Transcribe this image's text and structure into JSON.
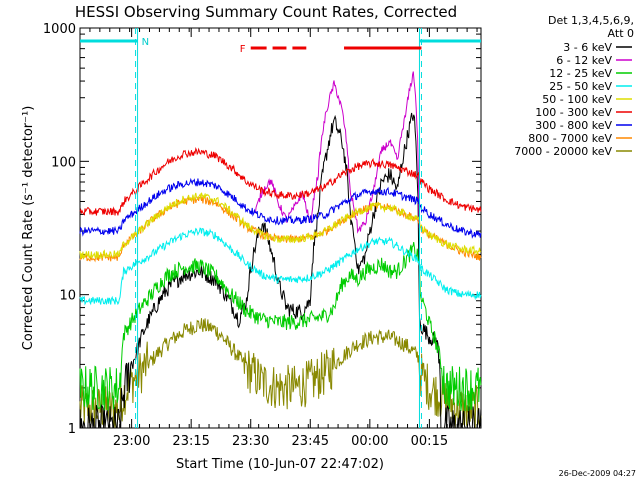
{
  "chart_data": {
    "type": "line",
    "title": "HESSI Observing Summary Count Rates, Corrected",
    "ylabel": "Corrected Count Rate (s⁻¹ detector⁻¹)",
    "xlabel": "Start Time (10-Jun-07 22:47:02)",
    "y_scale": "log",
    "ylim": [
      1,
      1000
    ],
    "xlim_minutes": [
      0,
      101
    ],
    "ytick_labels": [
      "1",
      "10",
      "100",
      "1000"
    ],
    "ytick_values": [
      1,
      10,
      100,
      1000
    ],
    "xtick_labels": [
      "23:00",
      "23:15",
      "23:30",
      "23:45",
      "00:00",
      "00:15"
    ],
    "xtick_minutes": [
      13,
      28,
      43,
      58,
      73,
      88
    ],
    "legend_header": [
      "Det 1,3,4,5,6,9,",
      "Att 0"
    ],
    "legend_position": "right, outside plot",
    "footer_date": "26-Dec-2009 04:27",
    "night_label": "N",
    "night_intervals_minutes": [
      [
        0,
        14.5
      ],
      [
        85.5,
        101
      ]
    ],
    "flare_label": "F",
    "flare_segments_minutes": [
      [
        43,
        47
      ],
      [
        48.5,
        52
      ],
      [
        53.5,
        57
      ],
      [
        66.5,
        86
      ]
    ],
    "attenuator_lines_minutes": [
      14.5,
      85.5
    ],
    "series": [
      {
        "name": "3 - 6 keV",
        "color": "#000000",
        "x": [
          0,
          10,
          11,
          14,
          18,
          22,
          26,
          30,
          34,
          38,
          40,
          42,
          44,
          46,
          48,
          50,
          52,
          54,
          56,
          58,
          60,
          62,
          64,
          66,
          68,
          70,
          72,
          74,
          76,
          78,
          80,
          82,
          84,
          85.4,
          85.6,
          88,
          90,
          91,
          92,
          101
        ],
        "y": [
          1,
          1,
          1.8,
          3.5,
          7,
          11,
          14,
          15,
          13,
          8.5,
          6.5,
          9,
          22,
          35,
          22,
          12,
          8,
          7.5,
          7.5,
          9,
          40,
          110,
          200,
          140,
          40,
          15,
          20,
          40,
          70,
          80,
          60,
          130,
          230,
          7,
          6,
          4.8,
          4.5,
          1,
          1,
          1
        ]
      },
      {
        "name": "6 - 12 keV",
        "color": "#cc00cc",
        "x": [
          44,
          46,
          48,
          50,
          52,
          54,
          56,
          58,
          60,
          62,
          64,
          66,
          68,
          70,
          72,
          74,
          76,
          78,
          80,
          82,
          84,
          85.4
        ],
        "y": [
          40,
          60,
          72,
          48,
          36,
          45,
          58,
          32,
          80,
          230,
          380,
          240,
          60,
          30,
          35,
          60,
          120,
          140,
          100,
          220,
          460,
          30
        ]
      },
      {
        "name": "12 - 25 keV",
        "color": "#00cc00",
        "x": [
          0,
          10,
          11,
          14,
          18,
          22,
          26,
          30,
          34,
          38,
          42,
          46,
          50,
          54,
          58,
          62,
          64,
          66,
          68,
          70,
          72,
          74,
          76,
          78,
          80,
          82,
          84,
          85.4,
          85.6,
          88,
          91,
          92,
          101
        ],
        "y": [
          2,
          2,
          5,
          7,
          10,
          14,
          16,
          16.5,
          14,
          10,
          7.5,
          6.5,
          6.2,
          6.2,
          6.5,
          7,
          8,
          12,
          14,
          13,
          15,
          16,
          17,
          15,
          15,
          18,
          22,
          19,
          10,
          6,
          3,
          2,
          2
        ]
      },
      {
        "name": "25 - 50 keV",
        "color": "#00eeee",
        "x": [
          0,
          10,
          11,
          14,
          18,
          22,
          26,
          30,
          34,
          38,
          42,
          46,
          50,
          54,
          58,
          62,
          66,
          70,
          74,
          78,
          82,
          85.4,
          85.6,
          88,
          92,
          96,
          101
        ],
        "y": [
          9,
          9,
          15,
          17,
          20,
          24,
          28,
          30,
          28,
          22,
          17,
          14,
          13,
          13,
          13.5,
          15,
          18,
          22,
          25,
          25,
          21,
          18,
          16,
          14,
          11,
          10,
          10
        ]
      },
      {
        "name": "50 - 100 keV",
        "color": "#dddd00",
        "x": [
          0,
          10,
          11,
          14,
          18,
          22,
          26,
          30,
          34,
          38,
          42,
          46,
          50,
          54,
          58,
          62,
          66,
          70,
          74,
          78,
          82,
          85.4,
          85.6,
          88,
          92,
          96,
          101
        ],
        "y": [
          20,
          20,
          24,
          28,
          36,
          45,
          52,
          55,
          52,
          42,
          33,
          28,
          26,
          26,
          27,
          30,
          36,
          42,
          46,
          45,
          40,
          36,
          33,
          28,
          24,
          22,
          21
        ]
      },
      {
        "name": "100 - 300 keV",
        "color": "#ee0000",
        "x": [
          0,
          10,
          11,
          14,
          18,
          22,
          26,
          30,
          34,
          38,
          42,
          46,
          50,
          54,
          58,
          62,
          66,
          70,
          74,
          78,
          82,
          85.4,
          85.6,
          88,
          92,
          96,
          101
        ],
        "y": [
          42,
          42,
          50,
          60,
          78,
          98,
          114,
          118,
          110,
          90,
          70,
          60,
          56,
          55,
          58,
          65,
          80,
          92,
          97,
          94,
          85,
          78,
          72,
          62,
          52,
          46,
          43
        ]
      },
      {
        "name": "300 - 800 keV",
        "color": "#0000ee",
        "x": [
          0,
          10,
          11,
          14,
          18,
          22,
          26,
          30,
          34,
          38,
          42,
          46,
          50,
          54,
          58,
          62,
          66,
          70,
          74,
          78,
          82,
          85.4,
          85.6,
          88,
          92,
          96,
          101
        ],
        "y": [
          30,
          30,
          36,
          42,
          52,
          62,
          68,
          70,
          66,
          55,
          44,
          38,
          36,
          36,
          37,
          40,
          48,
          56,
          60,
          59,
          54,
          50,
          46,
          40,
          34,
          30,
          28
        ]
      },
      {
        "name": "800 - 7000 keV",
        "color": "#ff8800",
        "x": [
          0,
          10,
          11,
          14,
          18,
          22,
          26,
          30,
          34,
          38,
          42,
          46,
          50,
          54,
          58,
          62,
          66,
          70,
          74,
          78,
          82,
          85.4,
          85.6,
          88,
          92,
          96,
          101
        ],
        "y": [
          19,
          19,
          24,
          28,
          36,
          44,
          50,
          52,
          49,
          40,
          32,
          28,
          26,
          26,
          27,
          30,
          36,
          42,
          46,
          45,
          40,
          36,
          32,
          28,
          24,
          21,
          19
        ]
      },
      {
        "name": "7000 - 20000 keV",
        "color": "#888800",
        "x": [
          0,
          10,
          11,
          14,
          18,
          22,
          26,
          30,
          34,
          38,
          42,
          46,
          50,
          54,
          58,
          62,
          66,
          70,
          74,
          78,
          82,
          85.4,
          85.6,
          88,
          92,
          96,
          101
        ],
        "y": [
          1.4,
          1.4,
          1.8,
          2.4,
          3.2,
          4.3,
          5.3,
          6,
          5.5,
          4,
          2.8,
          2.2,
          2,
          2,
          2.2,
          2.6,
          3.4,
          4.3,
          4.8,
          4.8,
          4.2,
          3.4,
          2.6,
          2,
          1.6,
          1.4,
          1.4
        ]
      }
    ]
  }
}
